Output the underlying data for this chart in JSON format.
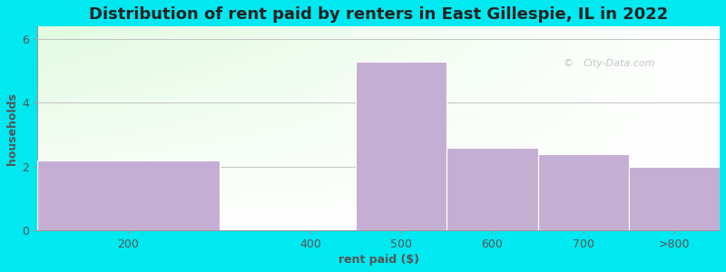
{
  "title": "Distribution of rent paid by renters in East Gillespie, IL in 2022",
  "xlabel": "rent paid ($)",
  "ylabel": "households",
  "bar_labels": [
    "200",
    "400",
    "500",
    "600",
    "700",
    ">800"
  ],
  "bar_values": [
    2.2,
    0.0,
    5.3,
    2.6,
    2.4,
    2.0
  ],
  "bar_edges": [
    100,
    300,
    450,
    550,
    650,
    750,
    850
  ],
  "bar_color": "#c4aed4",
  "ylim": [
    0,
    6.4
  ],
  "yticks": [
    0,
    2,
    4,
    6
  ],
  "xtick_positions": [
    200,
    400,
    500,
    600,
    700,
    800
  ],
  "xtick_labels": [
    "200",
    "400",
    "500",
    "600",
    "700",
    ">800"
  ],
  "background_outer": "#00e8f0",
  "background_inner": "#e8ffe8",
  "title_fontsize": 13,
  "axis_label_fontsize": 9,
  "tick_fontsize": 9,
  "watermark": "City-Data.com"
}
